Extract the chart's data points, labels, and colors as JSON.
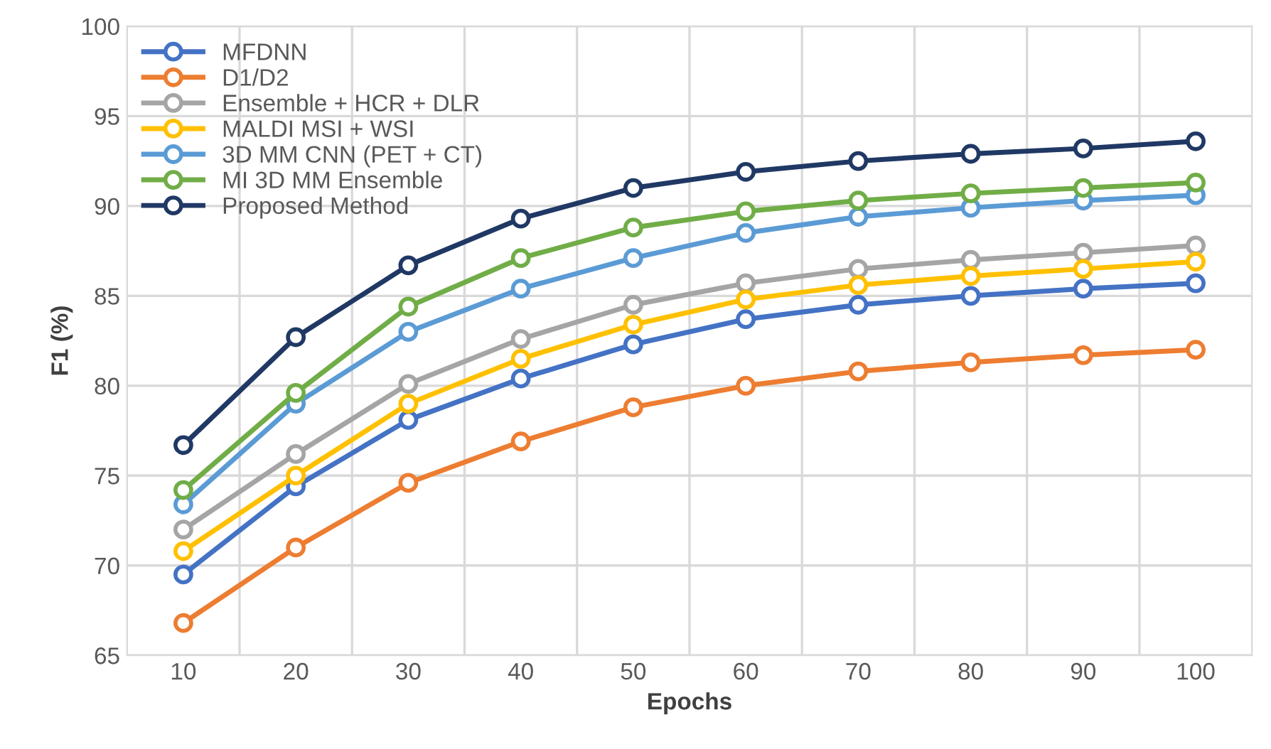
{
  "chart_data": {
    "type": "line",
    "xlabel": "Epochs",
    "ylabel": "F1 (%)",
    "categories": [
      "10",
      "20",
      "30",
      "40",
      "50",
      "60",
      "70",
      "80",
      "90",
      "100"
    ],
    "ylim": [
      65,
      100
    ],
    "yticks": [
      65,
      70,
      75,
      80,
      85,
      90,
      95,
      100
    ],
    "grid": true,
    "legend": "top left",
    "marker": "circle",
    "line_style": "solid",
    "series": [
      {
        "name": "MFDNN",
        "color": "#4472c4",
        "values": [
          69.5,
          74.4,
          78.1,
          80.4,
          82.3,
          83.7,
          84.5,
          85.0,
          85.4,
          85.7
        ]
      },
      {
        "name": "D1/D2",
        "color": "#ed7d31",
        "values": [
          66.8,
          71.0,
          74.6,
          76.9,
          78.8,
          80.0,
          80.8,
          81.3,
          81.7,
          82.0
        ]
      },
      {
        "name": "Ensemble + HCR + DLR",
        "color": "#a5a5a5",
        "values": [
          72.0,
          76.2,
          80.1,
          82.6,
          84.5,
          85.7,
          86.5,
          87.0,
          87.4,
          87.8
        ]
      },
      {
        "name": "MALDI MSI + WSI",
        "color": "#ffc000",
        "values": [
          70.8,
          75.0,
          79.0,
          81.5,
          83.4,
          84.8,
          85.6,
          86.1,
          86.5,
          86.9
        ]
      },
      {
        "name": "3D MM CNN (PET + CT)",
        "color": "#5b9bd5",
        "values": [
          73.4,
          79.0,
          83.0,
          85.4,
          87.1,
          88.5,
          89.4,
          89.9,
          90.3,
          90.6
        ]
      },
      {
        "name": "MI 3D MM Ensemble",
        "color": "#70ad47",
        "values": [
          74.2,
          79.6,
          84.4,
          87.1,
          88.8,
          89.7,
          90.3,
          90.7,
          91.0,
          91.3
        ]
      },
      {
        "name": "Proposed Method",
        "color": "#203864",
        "values": [
          76.7,
          82.7,
          86.7,
          89.3,
          91.0,
          91.9,
          92.5,
          92.9,
          93.2,
          93.6
        ]
      }
    ]
  }
}
